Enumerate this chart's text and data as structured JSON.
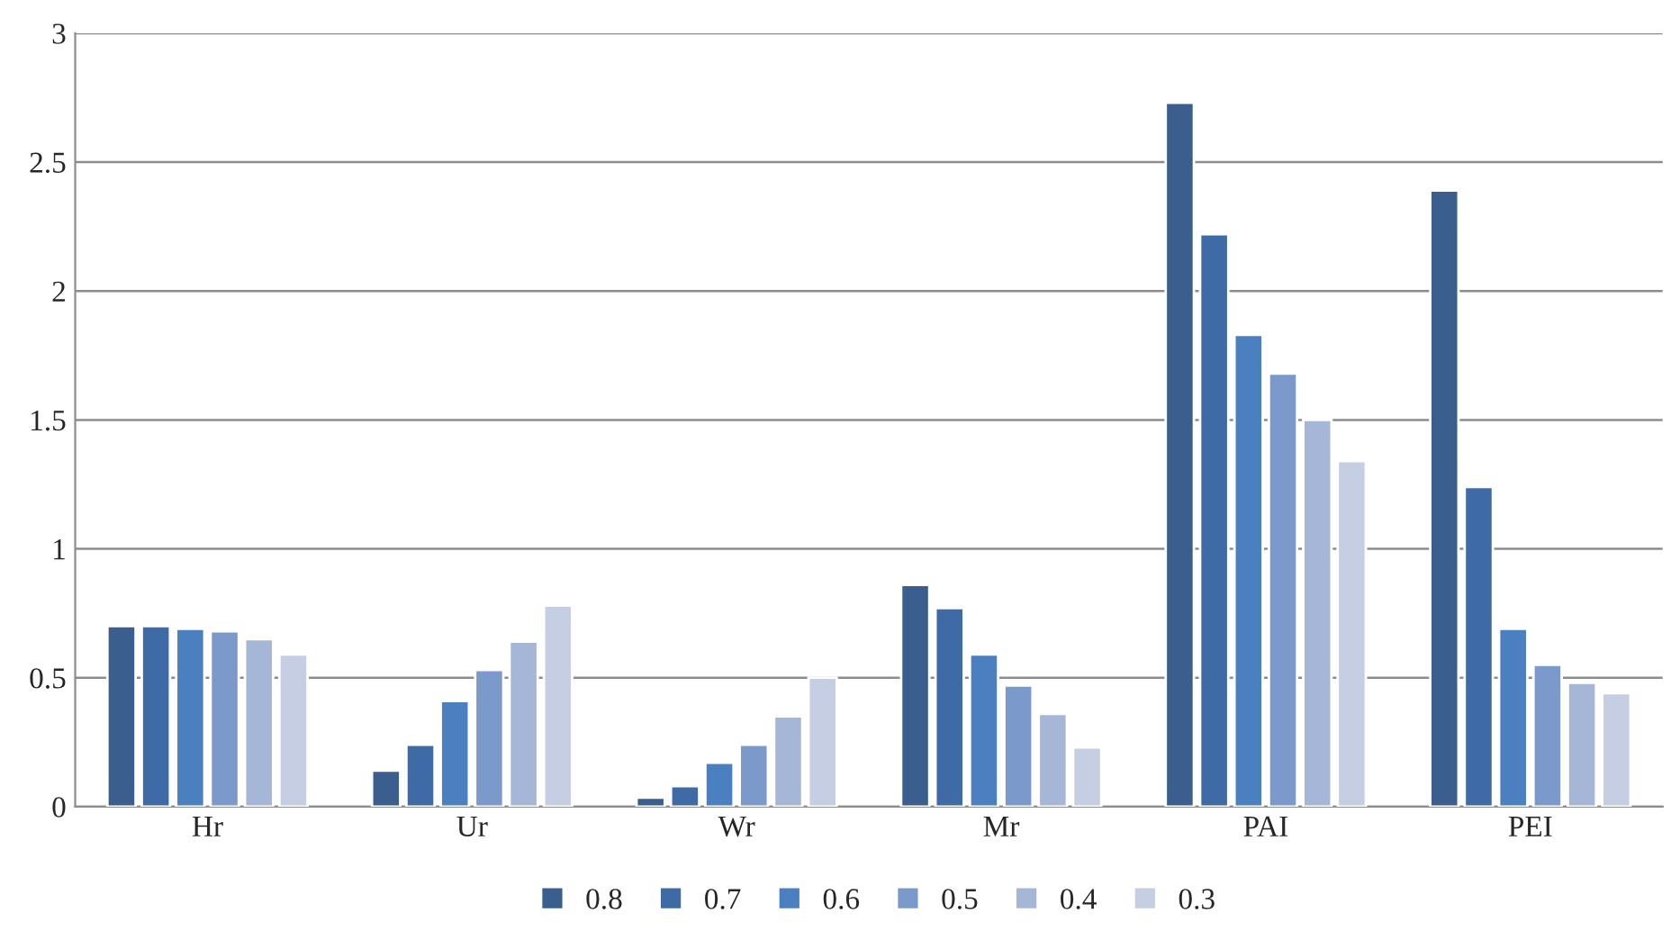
{
  "chart_data": {
    "type": "bar",
    "categories": [
      "Hr",
      "Ur",
      "Wr",
      "Mr",
      "PAI",
      "PEI"
    ],
    "series": [
      {
        "name": "0.8",
        "color": "#3a5f8f",
        "values": [
          0.7,
          0.14,
          0.035,
          0.86,
          2.73,
          2.39
        ]
      },
      {
        "name": "0.7",
        "color": "#3e6aa5",
        "values": [
          0.7,
          0.24,
          0.08,
          0.77,
          2.22,
          1.24
        ]
      },
      {
        "name": "0.6",
        "color": "#4a7fc0",
        "values": [
          0.69,
          0.41,
          0.17,
          0.59,
          1.83,
          0.69
        ]
      },
      {
        "name": "0.5",
        "color": "#7b9acb",
        "values": [
          0.68,
          0.53,
          0.24,
          0.47,
          1.68,
          0.55
        ]
      },
      {
        "name": "0.4",
        "color": "#a6b6d6",
        "values": [
          0.65,
          0.64,
          0.35,
          0.36,
          1.5,
          0.48
        ]
      },
      {
        "name": "0.3",
        "color": "#c5cee3",
        "values": [
          0.59,
          0.78,
          0.5,
          0.23,
          1.34,
          0.44
        ]
      }
    ],
    "ylim": [
      0,
      3
    ],
    "yticks": [
      0,
      0.5,
      1,
      1.5,
      2,
      2.5,
      3
    ],
    "grid": "y",
    "legend": "bottom"
  }
}
